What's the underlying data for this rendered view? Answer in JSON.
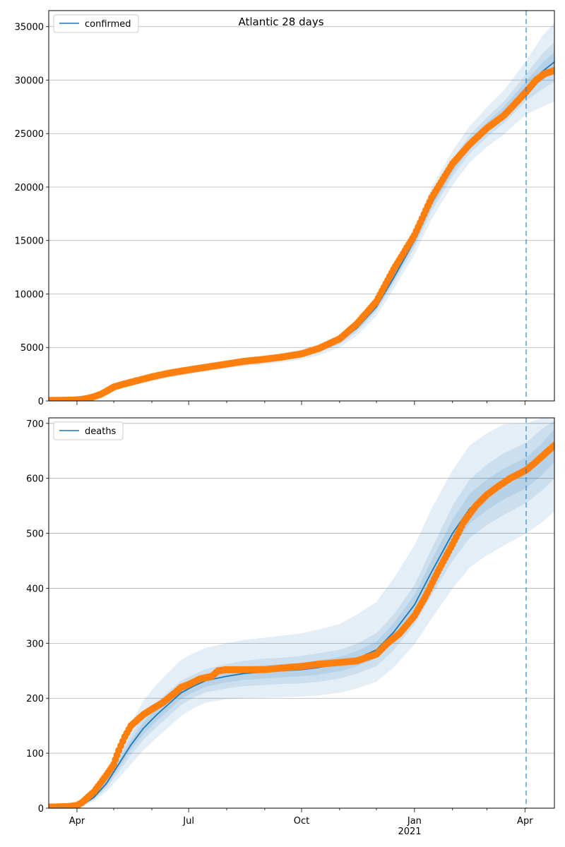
{
  "figure_title": "Atlantic 28 days",
  "chart_data": [
    {
      "type": "line",
      "legend": "confirmed",
      "legend_position": "upper-left",
      "grid": "y",
      "ylim": [
        0,
        36500
      ],
      "xlim": [
        "2020-03-09",
        "2021-04-25"
      ],
      "yticks": [
        0,
        5000,
        10000,
        15000,
        20000,
        25000,
        30000,
        35000
      ],
      "ytick_labels": [
        "0",
        "5000",
        "10000",
        "15000",
        "20000",
        "25000",
        "30000",
        "35000"
      ],
      "forecast_start": "2021-04-02",
      "observed_color": "#ff7f0e",
      "model_color": "#1f77b4",
      "model": {
        "x": [
          "2020-03-09",
          "2020-03-23",
          "2020-04-01",
          "2020-04-10",
          "2020-04-20",
          "2020-05-01",
          "2020-05-15",
          "2020-06-01",
          "2020-06-15",
          "2020-07-01",
          "2020-07-15",
          "2020-08-01",
          "2020-08-15",
          "2020-09-01",
          "2020-09-15",
          "2020-10-01",
          "2020-10-15",
          "2020-11-01",
          "2020-11-15",
          "2020-12-01",
          "2020-12-15",
          "2021-01-01",
          "2021-01-15",
          "2021-02-01",
          "2021-02-15",
          "2021-03-01",
          "2021-03-15",
          "2021-04-02",
          "2021-04-15",
          "2021-04-25"
        ],
        "y": [
          0,
          50,
          100,
          300,
          600,
          1300,
          1700,
          2100,
          2500,
          2850,
          3100,
          3400,
          3650,
          3850,
          4050,
          4350,
          4800,
          5600,
          6800,
          8800,
          11500,
          15000,
          18500,
          21800,
          24000,
          25600,
          27000,
          29300,
          30800,
          31700
        ]
      },
      "bands": [
        {
          "lower": [
            0,
            40,
            80,
            240,
            480,
            1120,
            1460,
            1840,
            2200,
            2520,
            2760,
            3040,
            3270,
            3440,
            3620,
            3880,
            4280,
            5000,
            6100,
            7950,
            10450,
            13700,
            17000,
            20200,
            22300,
            23750,
            24950,
            26800,
            27500,
            28000
          ],
          "upper": [
            0,
            60,
            120,
            360,
            720,
            1480,
            1940,
            2360,
            2800,
            3180,
            3440,
            3760,
            4030,
            4260,
            4480,
            4820,
            5320,
            6200,
            7500,
            9650,
            12550,
            16300,
            20000,
            23400,
            25700,
            27450,
            29050,
            31800,
            34100,
            35400
          ]
        },
        {
          "lower": [
            0,
            45,
            90,
            270,
            540,
            1210,
            1580,
            1970,
            2350,
            2690,
            2930,
            3220,
            3460,
            3650,
            3840,
            4120,
            4540,
            5300,
            6450,
            8380,
            10980,
            14350,
            17750,
            21000,
            23150,
            24680,
            25980,
            28050,
            29150,
            29850
          ],
          "upper": [
            0,
            55,
            110,
            330,
            660,
            1390,
            1820,
            2230,
            2650,
            3010,
            3270,
            3580,
            3840,
            4050,
            4260,
            4580,
            5060,
            5900,
            7150,
            9220,
            12020,
            15650,
            19250,
            22600,
            24850,
            26520,
            28020,
            30550,
            32450,
            33550
          ]
        },
        {
          "lower": [
            0,
            48,
            96,
            285,
            570,
            1255,
            1640,
            2035,
            2425,
            2770,
            3015,
            3310,
            3555,
            3750,
            3945,
            4235,
            4670,
            5450,
            6625,
            8590,
            11240,
            14675,
            18125,
            21400,
            23575,
            25140,
            26490,
            28675,
            29975,
            30775
          ],
          "upper": [
            0,
            52,
            104,
            315,
            630,
            1345,
            1760,
            2165,
            2575,
            2930,
            3185,
            3490,
            3745,
            3950,
            4155,
            4465,
            4930,
            5750,
            6975,
            9010,
            11760,
            15325,
            18875,
            22200,
            24425,
            26060,
            27510,
            29925,
            31625,
            32625
          ]
        }
      ],
      "observed": {
        "x": [
          "2020-03-09",
          "2020-03-20",
          "2020-03-25",
          "2020-04-01",
          "2020-04-05",
          "2020-04-10",
          "2020-04-15",
          "2020-04-20",
          "2020-04-25",
          "2020-05-01",
          "2020-05-10",
          "2020-05-20",
          "2020-06-01",
          "2020-06-15",
          "2020-07-01",
          "2020-07-15",
          "2020-08-01",
          "2020-08-15",
          "2020-09-01",
          "2020-09-15",
          "2020-10-01",
          "2020-10-15",
          "2020-11-01",
          "2020-11-15",
          "2020-12-01",
          "2020-12-15",
          "2021-01-01",
          "2021-01-15",
          "2021-02-01",
          "2021-02-15",
          "2021-03-01",
          "2021-03-15",
          "2021-04-02",
          "2021-04-10",
          "2021-04-17",
          "2021-04-25"
        ],
        "y": [
          50,
          60,
          70,
          100,
          150,
          250,
          400,
          600,
          900,
          1300,
          1600,
          1900,
          2250,
          2600,
          2900,
          3150,
          3450,
          3700,
          3900,
          4100,
          4400,
          4900,
          5800,
          7200,
          9300,
          12300,
          15500,
          19000,
          22200,
          24000,
          25500,
          26700,
          28900,
          30000,
          30600,
          30900
        ]
      }
    },
    {
      "type": "line",
      "legend": "deaths",
      "legend_position": "upper-left",
      "grid": "y",
      "ylim": [
        0,
        710
      ],
      "xlim": [
        "2020-03-09",
        "2021-04-25"
      ],
      "yticks": [
        0,
        100,
        200,
        300,
        400,
        500,
        600,
        700
      ],
      "ytick_labels": [
        "0",
        "100",
        "200",
        "300",
        "400",
        "500",
        "600",
        "700"
      ],
      "xticks": [
        "2020-04-01",
        "2020-07-01",
        "2020-10-01",
        "2021-01-01",
        "2021-04-01"
      ],
      "xtick_labels": [
        "Apr",
        "Jul",
        "Oct",
        "Jan",
        "Apr"
      ],
      "xtick_year_label": "2021",
      "forecast_start": "2021-04-02",
      "observed_color": "#ff7f0e",
      "model_color": "#1f77b4",
      "model": {
        "x": [
          "2020-03-09",
          "2020-03-25",
          "2020-04-05",
          "2020-04-15",
          "2020-04-25",
          "2020-05-05",
          "2020-05-15",
          "2020-05-25",
          "2020-06-05",
          "2020-06-15",
          "2020-06-25",
          "2020-07-05",
          "2020-07-15",
          "2020-08-01",
          "2020-08-15",
          "2020-09-01",
          "2020-09-15",
          "2020-10-01",
          "2020-10-15",
          "2020-11-01",
          "2020-11-15",
          "2020-12-01",
          "2020-12-15",
          "2021-01-01",
          "2021-01-15",
          "2021-02-01",
          "2021-02-15",
          "2021-03-01",
          "2021-03-15",
          "2021-04-02",
          "2021-04-15",
          "2021-04-25"
        ],
        "y": [
          0,
          0,
          5,
          20,
          45,
          80,
          115,
          145,
          170,
          190,
          210,
          222,
          232,
          240,
          245,
          248,
          250,
          252,
          256,
          262,
          272,
          288,
          320,
          370,
          430,
          500,
          545,
          570,
          590,
          610,
          635,
          660
        ]
      },
      "bands": [
        {
          "lower": [
            0,
            0,
            3,
            13,
            30,
            55,
            80,
            105,
            128,
            148,
            168,
            182,
            192,
            198,
            200,
            201,
            202,
            203,
            205,
            210,
            218,
            230,
            256,
            298,
            345,
            400,
            438,
            460,
            478,
            500,
            520,
            540
          ],
          "upper": [
            0,
            0,
            8,
            30,
            64,
            110,
            155,
            195,
            225,
            248,
            270,
            282,
            292,
            300,
            306,
            310,
            314,
            318,
            325,
            335,
            352,
            375,
            418,
            478,
            545,
            615,
            660,
            682,
            698,
            700,
            710,
            710
          ]
        },
        {
          "lower": [
            0,
            0,
            4,
            16,
            37,
            66,
            97,
            124,
            148,
            168,
            188,
            201,
            211,
            218,
            222,
            224,
            226,
            227,
            230,
            236,
            245,
            258,
            288,
            334,
            388,
            450,
            492,
            515,
            534,
            555,
            578,
            600
          ],
          "upper": [
            0,
            0,
            6,
            24,
            53,
            94,
            133,
            166,
            193,
            213,
            232,
            243,
            253,
            262,
            268,
            272,
            274,
            277,
            282,
            288,
            299,
            318,
            352,
            406,
            472,
            550,
            598,
            625,
            646,
            665,
            690,
            705
          ]
        },
        {
          "lower": [
            0,
            0,
            5,
            18,
            41,
            73,
            106,
            134,
            159,
            179,
            199,
            211,
            221,
            229,
            233,
            236,
            238,
            240,
            243,
            249,
            258,
            273,
            304,
            352,
            409,
            475,
            518,
            542,
            562,
            582,
            606,
            630
          ],
          "upper": [
            0,
            0,
            6,
            22,
            49,
            87,
            124,
            156,
            181,
            201,
            221,
            233,
            243,
            251,
            257,
            260,
            262,
            264,
            269,
            275,
            286,
            303,
            336,
            388,
            451,
            525,
            572,
            598,
            618,
            638,
            664,
            690
          ]
        }
      ],
      "observed": {
        "x": [
          "2020-03-09",
          "2020-03-25",
          "2020-04-01",
          "2020-04-05",
          "2020-04-10",
          "2020-04-15",
          "2020-04-20",
          "2020-04-25",
          "2020-05-01",
          "2020-05-05",
          "2020-05-10",
          "2020-05-15",
          "2020-05-20",
          "2020-05-25",
          "2020-06-01",
          "2020-06-10",
          "2020-06-20",
          "2020-06-25",
          "2020-07-01",
          "2020-07-10",
          "2020-07-20",
          "2020-07-25",
          "2020-08-01",
          "2020-08-15",
          "2020-09-01",
          "2020-09-15",
          "2020-10-01",
          "2020-10-15",
          "2020-11-01",
          "2020-11-15",
          "2020-12-01",
          "2020-12-10",
          "2020-12-20",
          "2021-01-01",
          "2021-01-10",
          "2021-01-20",
          "2021-02-01",
          "2021-02-10",
          "2021-02-20",
          "2021-03-01",
          "2021-03-10",
          "2021-03-20",
          "2021-04-02",
          "2021-04-10",
          "2021-04-20",
          "2021-04-25"
        ],
        "y": [
          2,
          3,
          5,
          10,
          20,
          30,
          45,
          60,
          80,
          105,
          130,
          150,
          160,
          170,
          180,
          192,
          210,
          220,
          225,
          235,
          240,
          250,
          252,
          252,
          252,
          255,
          258,
          262,
          265,
          268,
          280,
          300,
          318,
          350,
          385,
          430,
          480,
          520,
          550,
          570,
          585,
          600,
          615,
          630,
          650,
          660
        ]
      }
    }
  ]
}
